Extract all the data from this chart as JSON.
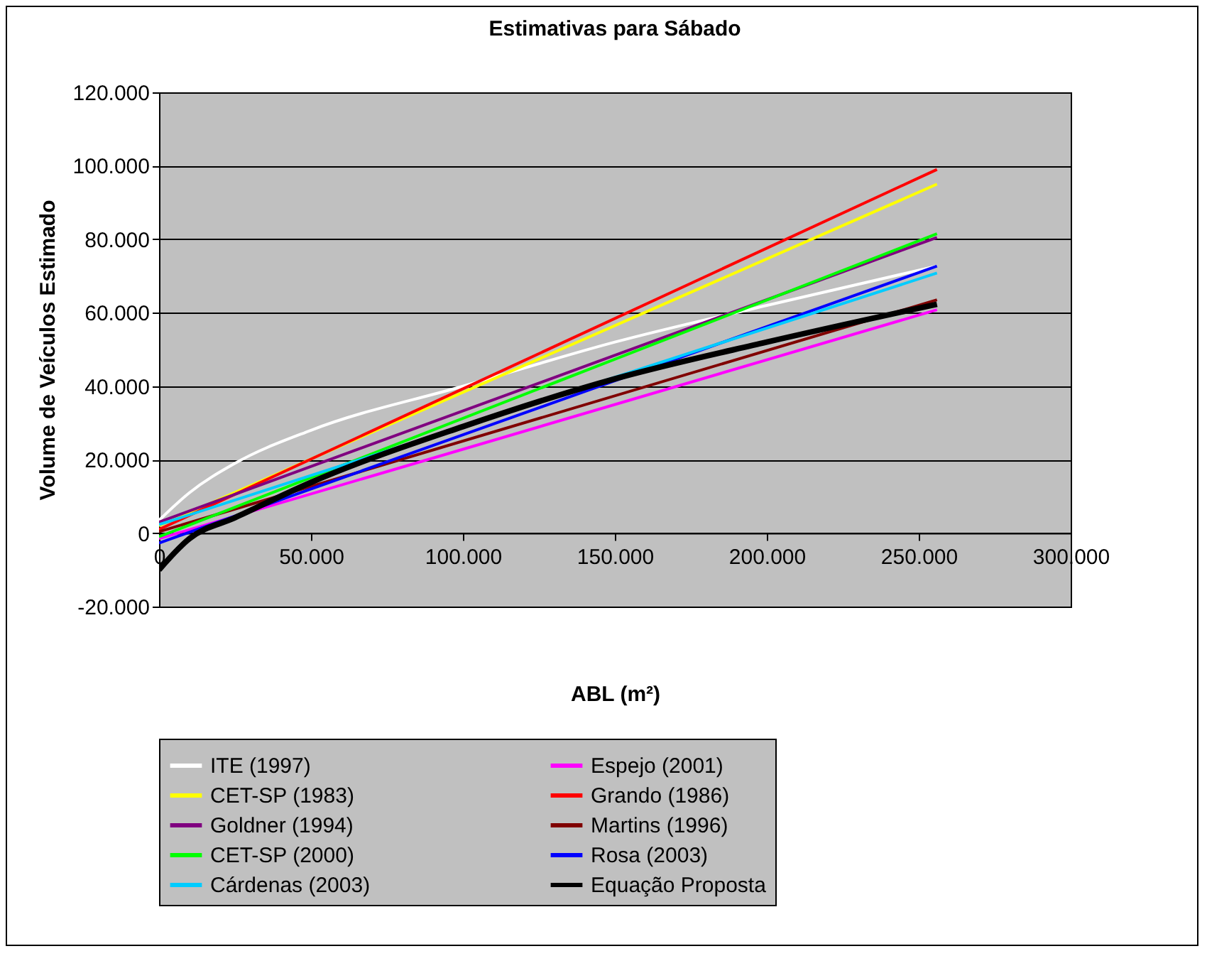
{
  "chart_data": {
    "type": "line",
    "title": "Estimativas para Sábado",
    "xlabel": "ABL (m²)",
    "ylabel": "Volume de Veículos Estimado",
    "xlim": [
      0,
      300000
    ],
    "ylim": [
      -20000,
      120000
    ],
    "xticks": [
      {
        "value": 0,
        "label": "0"
      },
      {
        "value": 50000,
        "label": "50.000"
      },
      {
        "value": 100000,
        "label": "100.000"
      },
      {
        "value": 150000,
        "label": "150.000"
      },
      {
        "value": 200000,
        "label": "200.000"
      },
      {
        "value": 250000,
        "label": "250.000"
      },
      {
        "value": 300000,
        "label": "300.000"
      }
    ],
    "yticks": [
      {
        "value": -20000,
        "label": "-20.000"
      },
      {
        "value": 0,
        "label": "0"
      },
      {
        "value": 20000,
        "label": "20.000"
      },
      {
        "value": 40000,
        "label": "40.000"
      },
      {
        "value": 60000,
        "label": "60.000"
      },
      {
        "value": 80000,
        "label": "80.000"
      },
      {
        "value": 100000,
        "label": "100.000"
      },
      {
        "value": 120000,
        "label": "120.000"
      }
    ],
    "grid": "y",
    "legend": "bottom",
    "marker": "none",
    "line_style": "solid",
    "series": [
      {
        "name": "ITE (1997)",
        "color": "#ffffff",
        "x": [
          0,
          10000,
          25000,
          50000,
          100000,
          150000,
          200000,
          256000
        ],
        "values": [
          3500,
          11000,
          19000,
          28000,
          40000,
          52000,
          62000,
          72700
        ]
      },
      {
        "name": "Espejo (2001)",
        "color": "#ff00ff",
        "x": [
          0,
          256000
        ],
        "values": [
          -1500,
          60800
        ]
      },
      {
        "name": "CET-SP (1983)",
        "color": "#ffff00",
        "x": [
          0,
          256000
        ],
        "values": [
          2000,
          95000
        ]
      },
      {
        "name": "Grando (1986)",
        "color": "#ff0000",
        "x": [
          0,
          256000
        ],
        "values": [
          1000,
          99000
        ]
      },
      {
        "name": "Goldner (1994)",
        "color": "#800080",
        "x": [
          0,
          256000
        ],
        "values": [
          3000,
          80500
        ]
      },
      {
        "name": "Martins (1996)",
        "color": "#800000",
        "x": [
          0,
          256000
        ],
        "values": [
          400,
          63500
        ]
      },
      {
        "name": "CET-SP (2000)",
        "color": "#00ff00",
        "x": [
          0,
          256000
        ],
        "values": [
          -1000,
          81500
        ]
      },
      {
        "name": "Rosa (2003)",
        "color": "#0000ff",
        "x": [
          0,
          256000
        ],
        "values": [
          -2700,
          72700
        ]
      },
      {
        "name": "Cárdenas (2003)",
        "color": "#00ccff",
        "x": [
          0,
          256000
        ],
        "values": [
          2300,
          70800
        ]
      },
      {
        "name": "Equação Proposta",
        "color": "#000000",
        "x": [
          0,
          10000,
          25000,
          50000,
          100000,
          150000,
          200000,
          256000
        ],
        "values": [
          -10000,
          -1500,
          4200,
          13800,
          29000,
          42000,
          52000,
          62300
        ]
      }
    ]
  }
}
